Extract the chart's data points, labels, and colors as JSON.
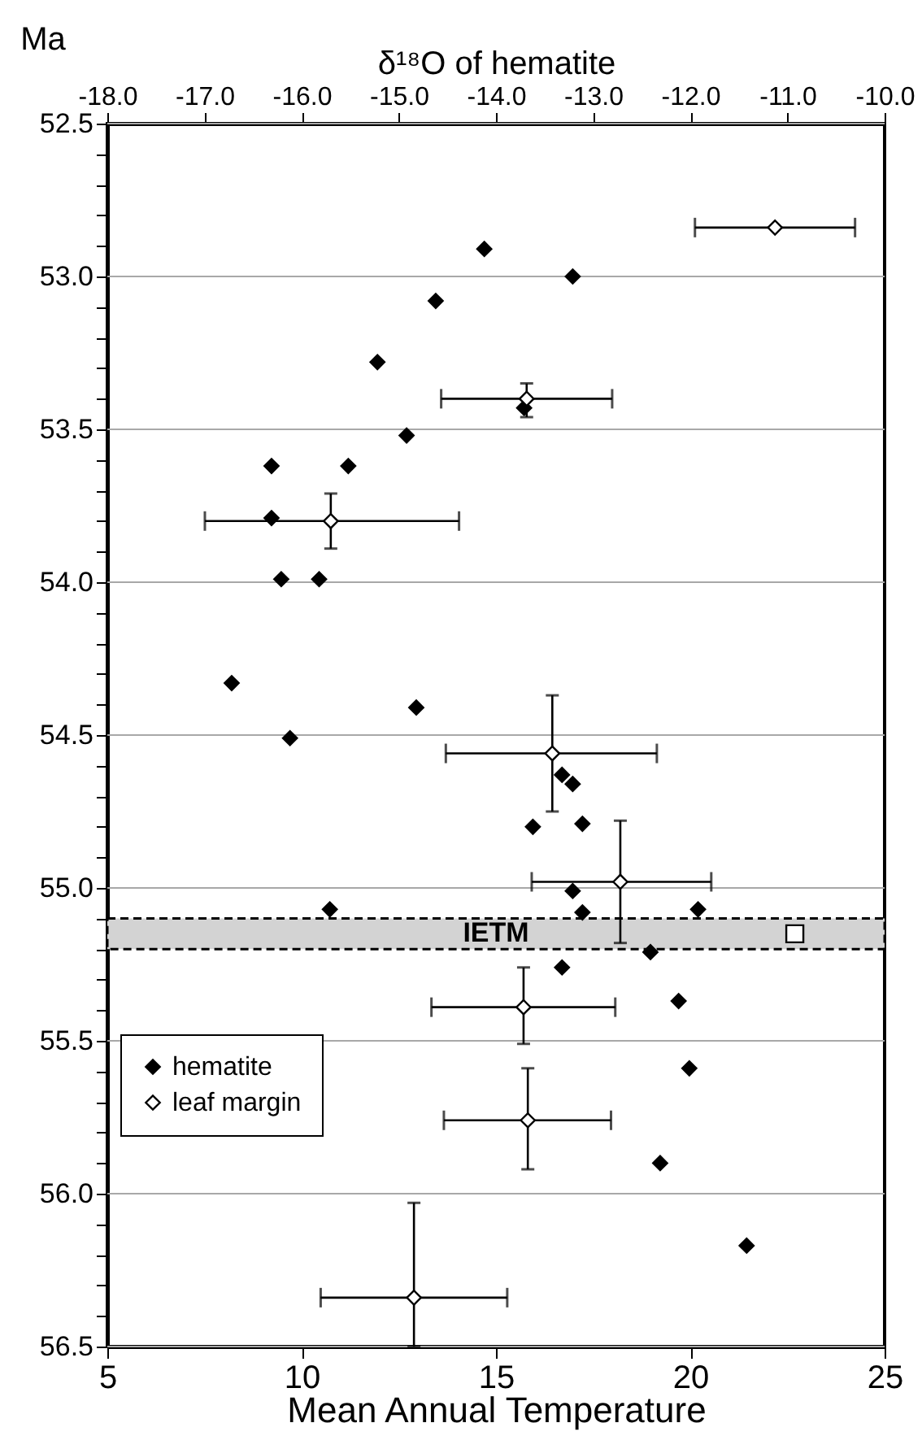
{
  "chart_data": {
    "type": "scatter",
    "xlabel": "Mean Annual Temperature",
    "x2label": "δ¹⁸O of hematite",
    "ylabel": "Ma",
    "xlim": [
      5,
      25
    ],
    "xticks": [
      5,
      10,
      15,
      20,
      25
    ],
    "x2lim": [
      -18,
      -10
    ],
    "x2ticks": [
      {
        "value": -18,
        "label": "-18.0"
      },
      {
        "value": -17,
        "label": "-17.0"
      },
      {
        "value": -16,
        "label": "-16.0"
      },
      {
        "value": -15,
        "label": "-15.0"
      },
      {
        "value": -14,
        "label": "-14.0"
      },
      {
        "value": -13,
        "label": "-13.0"
      },
      {
        "value": -12,
        "label": "-12.0"
      },
      {
        "value": -11,
        "label": "-11.0"
      },
      {
        "value": -10,
        "label": "-10.0"
      }
    ],
    "ylim": [
      56.5,
      52.5
    ],
    "yticks": [
      {
        "value": 52.5,
        "label": "52.5"
      },
      {
        "value": 52.6,
        "label": null
      },
      {
        "value": 52.7,
        "label": null
      },
      {
        "value": 52.8,
        "label": null
      },
      {
        "value": 52.9,
        "label": null
      },
      {
        "value": 53,
        "label": "53.0"
      },
      {
        "value": 53.1,
        "label": null
      },
      {
        "value": 53.2,
        "label": null
      },
      {
        "value": 53.3,
        "label": null
      },
      {
        "value": 53.4,
        "label": null
      },
      {
        "value": 53.5,
        "label": "53.5"
      },
      {
        "value": 53.6,
        "label": null
      },
      {
        "value": 53.7,
        "label": null
      },
      {
        "value": 53.8,
        "label": null
      },
      {
        "value": 53.9,
        "label": null
      },
      {
        "value": 54,
        "label": "54.0"
      },
      {
        "value": 54.1,
        "label": null
      },
      {
        "value": 54.2,
        "label": null
      },
      {
        "value": 54.3,
        "label": null
      },
      {
        "value": 54.4,
        "label": null
      },
      {
        "value": 54.5,
        "label": "54.5"
      },
      {
        "value": 54.6,
        "label": null
      },
      {
        "value": 54.7,
        "label": null
      },
      {
        "value": 54.8,
        "label": null
      },
      {
        "value": 54.9,
        "label": null
      },
      {
        "value": 55,
        "label": "55.0"
      },
      {
        "value": 55.1,
        "label": null
      },
      {
        "value": 55.2,
        "label": null
      },
      {
        "value": 55.3,
        "label": null
      },
      {
        "value": 55.4,
        "label": null
      },
      {
        "value": 55.5,
        "label": "55.5"
      },
      {
        "value": 55.6,
        "label": null
      },
      {
        "value": 55.7,
        "label": null
      },
      {
        "value": 55.8,
        "label": null
      },
      {
        "value": 55.9,
        "label": null
      },
      {
        "value": 56,
        "label": "56.0"
      },
      {
        "value": 56.1,
        "label": null
      },
      {
        "value": 56.2,
        "label": null
      },
      {
        "value": 56.3,
        "label": null
      },
      {
        "value": 56.4,
        "label": null
      },
      {
        "value": 56.5,
        "label": "56.5"
      }
    ],
    "grid": "y",
    "legend": "bottom left",
    "bands": [
      {
        "axis": "y",
        "from": 55.1,
        "to": 55.2,
        "label": "IETM",
        "color": "#d3d3d3"
      }
    ],
    "series": [
      {
        "name": "hematite",
        "axis": "x2",
        "color": "#000000",
        "marker": "diamond",
        "x": [
          -14.12,
          -13.21,
          -14.62,
          -15.22,
          -13.71,
          -14.92,
          -16.31,
          -15.52,
          -16.31,
          -16.21,
          -15.82,
          -16.72,
          -14.82,
          -16.12,
          -13.32,
          -13.21,
          -13.62,
          -13.11,
          -13.21,
          -15.71,
          -13.11,
          -11.92,
          -12.41,
          -13.32,
          -12.12,
          -12.01,
          -12.31,
          -11.42
        ],
        "values": [
          52.91,
          53.0,
          53.08,
          53.28,
          53.43,
          53.52,
          53.62,
          53.62,
          53.79,
          53.99,
          53.99,
          54.33,
          54.41,
          54.51,
          54.63,
          54.66,
          54.8,
          54.79,
          55.01,
          55.07,
          55.08,
          55.07,
          55.21,
          55.26,
          55.37,
          55.59,
          55.9,
          56.17
        ]
      },
      {
        "name": "leaf margin",
        "color": "#ffffff",
        "marker": "diamond",
        "x": [
          22.18,
          15.79,
          10.75,
          16.45,
          18.2,
          15.71,
          15.82,
          12.89
        ],
        "values": [
          52.84,
          53.4,
          53.8,
          54.56,
          54.98,
          55.39,
          55.76,
          56.34
        ],
        "xerrors": [
          [
            20.12,
            24.24
          ],
          [
            13.59,
            17.99
          ],
          [
            7.51,
            14.05
          ],
          [
            13.71,
            19.14
          ],
          [
            15.92,
            20.54
          ],
          [
            13.34,
            18.07
          ],
          [
            13.66,
            17.96
          ],
          [
            10.49,
            15.29
          ]
        ],
        "errors": [
          null,
          [
            53.35,
            53.46
          ],
          [
            53.71,
            53.89
          ],
          [
            54.37,
            54.75
          ],
          [
            54.78,
            55.18
          ],
          [
            55.26,
            55.51
          ],
          [
            55.59,
            55.92
          ],
          [
            56.03,
            56.5
          ]
        ]
      },
      {
        "color": "#ffffff",
        "marker": "square",
        "x": [
          22.69
        ],
        "values": [
          55.15
        ]
      }
    ]
  }
}
